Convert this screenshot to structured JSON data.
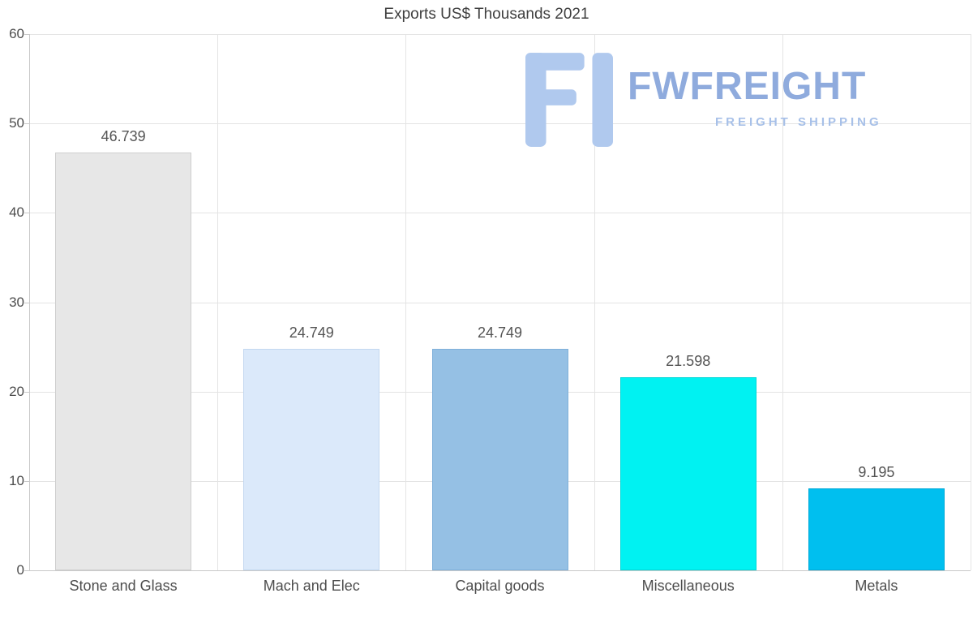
{
  "chart_data": {
    "type": "bar",
    "title": "Exports US$ Thousands 2021",
    "categories": [
      "Stone and Glass",
      "Mach and Elec",
      "Capital goods",
      "Miscellaneous",
      "Metals"
    ],
    "values": [
      46.739,
      24.749,
      24.749,
      21.598,
      9.195
    ],
    "value_labels": [
      "46.739",
      "24.749",
      "24.749",
      "21.598",
      "9.195"
    ],
    "bar_colors": [
      "#e7e7e7",
      "#dbe9fa",
      "#95c0e4",
      "#00f2f2",
      "#00bfef"
    ],
    "bar_border_colors": [
      "#cfcfcf",
      "#c3d8f0",
      "#7fb0da",
      "#00d8d8",
      "#00aad8"
    ],
    "xlabel": "",
    "ylabel": "",
    "ylim": [
      0,
      60
    ],
    "yticks": [
      0,
      10,
      20,
      30,
      40,
      50,
      60
    ],
    "grid": "horizontal gridlines and vertical category separators",
    "legend_position": "none"
  },
  "watermark": {
    "name": "FWFREIGHT",
    "tagline": "FREIGHT SHIPPING",
    "logo_icon": "fw-bracket-logo-icon",
    "color": "#8fabdd"
  },
  "colors": {
    "background": "#ffffff",
    "axis": "#c9c9c9",
    "gridline": "#e4e4e4",
    "tick_text": "#4d4d4d",
    "value_text": "#545454",
    "title_text": "#3f3f3f"
  }
}
